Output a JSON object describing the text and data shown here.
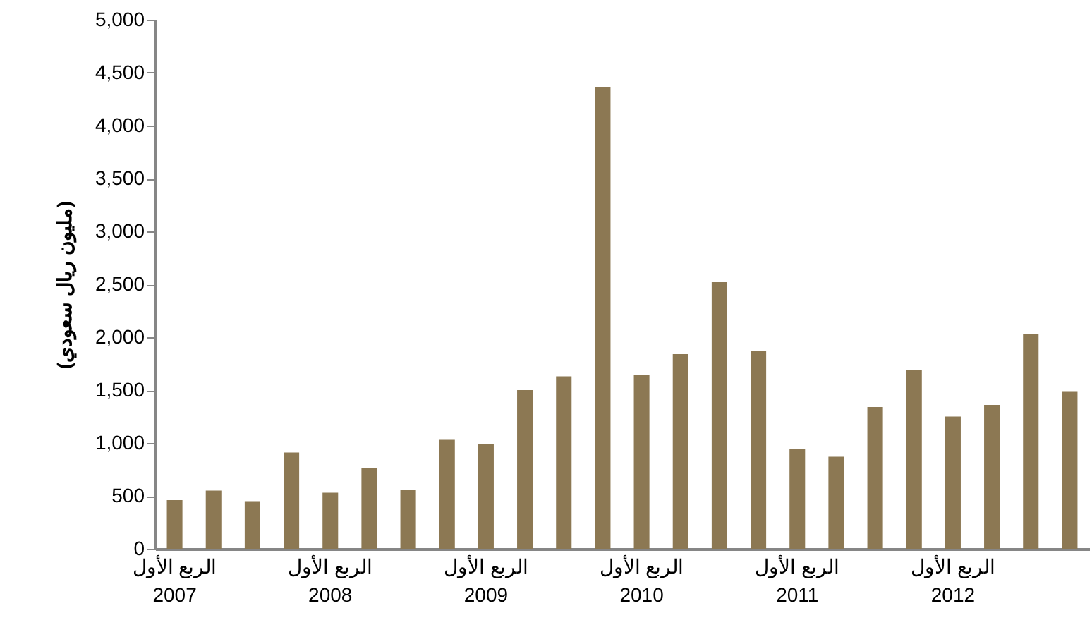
{
  "chart_data": {
    "type": "bar",
    "ylabel": "(مليون ريال سعودي)",
    "categories": [
      "الربع الأول\n2007",
      null,
      null,
      null,
      "الربع الأول\n2008",
      null,
      null,
      null,
      "الربع الأول\n2009",
      null,
      null,
      null,
      "الربع الأول\n2010",
      null,
      null,
      null,
      "الربع الأول\n2011",
      null,
      null,
      null,
      "الربع الأول\n2012",
      null,
      null,
      null
    ],
    "values": [
      460,
      550,
      450,
      910,
      530,
      760,
      560,
      1030,
      990,
      1500,
      1630,
      4360,
      1640,
      1840,
      2520,
      1870,
      940,
      870,
      1340,
      1690,
      1250,
      1360,
      2030,
      1490
    ],
    "color": "#8c7853",
    "ylim": [
      0,
      5000
    ],
    "yticks": [
      0,
      500,
      {
        "value": 1000,
        "label": "1,000"
      },
      {
        "value": 1500,
        "label": "1,500"
      },
      {
        "value": 2000,
        "label": "2,000"
      },
      {
        "value": 2500,
        "label": "2,500"
      },
      {
        "value": 3000,
        "label": "3,000"
      },
      {
        "value": 3500,
        "label": "3,500"
      },
      {
        "value": 4000,
        "label": "4,000"
      },
      {
        "value": 4500,
        "label": "4,500"
      },
      {
        "value": 5000,
        "label": "5,000"
      }
    ],
    "grid": false
  }
}
